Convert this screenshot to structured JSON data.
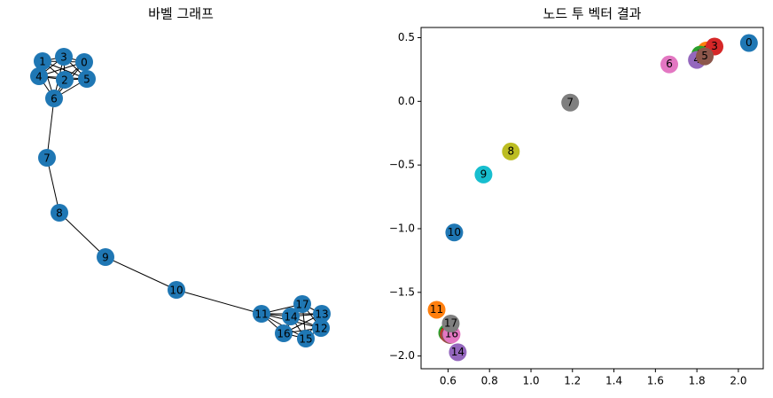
{
  "chart_data": [
    {
      "type": "network",
      "title": "바벨 그래프",
      "nodes": [
        "0",
        "1",
        "2",
        "3",
        "4",
        "5",
        "6",
        "7",
        "8",
        "9",
        "10",
        "11",
        "12",
        "13",
        "14",
        "15",
        "16",
        "17"
      ],
      "edges": [
        [
          0,
          1
        ],
        [
          0,
          2
        ],
        [
          0,
          3
        ],
        [
          0,
          4
        ],
        [
          0,
          5
        ],
        [
          0,
          6
        ],
        [
          1,
          2
        ],
        [
          1,
          3
        ],
        [
          1,
          4
        ],
        [
          1,
          5
        ],
        [
          1,
          6
        ],
        [
          2,
          3
        ],
        [
          2,
          4
        ],
        [
          2,
          5
        ],
        [
          2,
          6
        ],
        [
          3,
          4
        ],
        [
          3,
          5
        ],
        [
          3,
          6
        ],
        [
          4,
          5
        ],
        [
          4,
          6
        ],
        [
          5,
          6
        ],
        [
          6,
          7
        ],
        [
          7,
          8
        ],
        [
          8,
          9
        ],
        [
          9,
          10
        ],
        [
          10,
          11
        ],
        [
          11,
          12
        ],
        [
          11,
          13
        ],
        [
          11,
          14
        ],
        [
          11,
          15
        ],
        [
          11,
          16
        ],
        [
          11,
          17
        ],
        [
          12,
          13
        ],
        [
          12,
          14
        ],
        [
          12,
          15
        ],
        [
          12,
          16
        ],
        [
          12,
          17
        ],
        [
          13,
          14
        ],
        [
          13,
          15
        ],
        [
          13,
          16
        ],
        [
          13,
          17
        ],
        [
          14,
          15
        ],
        [
          14,
          16
        ],
        [
          14,
          17
        ],
        [
          15,
          16
        ],
        [
          15,
          17
        ],
        [
          16,
          17
        ]
      ],
      "color": "#1f77b4"
    },
    {
      "type": "scatter",
      "title": "노드 투 벡터 결과",
      "labels": [
        "0",
        "1",
        "2",
        "3",
        "4",
        "5",
        "6",
        "7",
        "8",
        "9",
        "10",
        "11",
        "12",
        "13",
        "14",
        "15",
        "16",
        "17"
      ],
      "x": [
        2.051,
        1.846,
        1.816,
        1.885,
        1.8,
        1.838,
        1.667,
        1.189,
        0.903,
        0.771,
        0.63,
        0.545,
        0.596,
        0.604,
        0.647,
        0.61,
        0.617,
        0.613
      ],
      "values": [
        0.458,
        0.4,
        0.367,
        0.43,
        0.325,
        0.353,
        0.29,
        -0.01,
        -0.394,
        -0.575,
        -1.03,
        -1.637,
        -1.818,
        -1.83,
        -1.97,
        -1.835,
        -1.83,
        -1.745
      ],
      "colors": [
        "#1f77b4",
        "#ff7f0e",
        "#2ca02c",
        "#d62728",
        "#9467bd",
        "#8c564b",
        "#e377c2",
        "#7f7f7f",
        "#bcbd22",
        "#17becf",
        "#1f77b4",
        "#ff7f0e",
        "#2ca02c",
        "#d62728",
        "#9467bd",
        "#8c564b",
        "#e377c2",
        "#7f7f7f"
      ],
      "xlim": [
        0.47,
        2.12
      ],
      "ylim": [
        -2.1,
        0.58
      ],
      "xticks": [
        0.6,
        0.8,
        {
          "value": 1.0,
          "label": "1.0"
        },
        1.2,
        1.4,
        1.6,
        1.8,
        {
          "value": 2.0,
          "label": "2.0"
        }
      ],
      "yticks": [
        0.5,
        {
          "value": 0.0,
          "label": "0.0"
        },
        {
          "value": -0.5,
          "label": "−0.5"
        },
        {
          "value": -1.0,
          "label": "−1.0"
        },
        {
          "value": -1.5,
          "label": "−1.5"
        },
        {
          "value": -2.0,
          "label": "−2.0"
        }
      ]
    }
  ]
}
